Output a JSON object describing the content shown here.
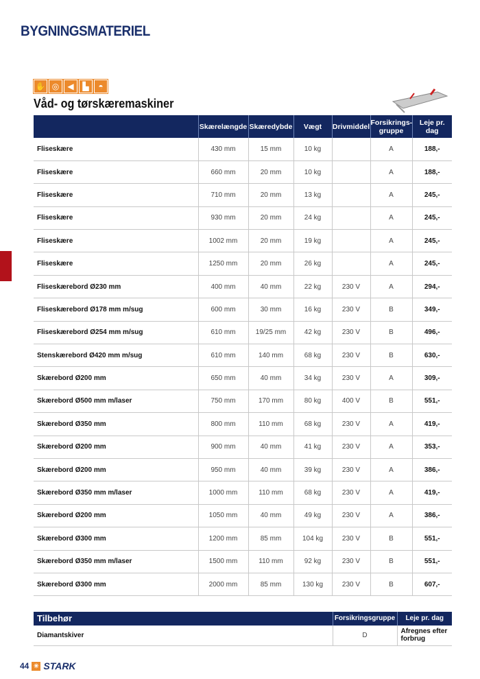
{
  "section_title": "BYGNINGSMATERIEL",
  "product_title": "Våd- og tørskæremaskiner",
  "safety_icons": [
    "gloves-icon",
    "ear-protection-icon",
    "dust-mask-icon",
    "safety-boots-icon",
    "helmet-icon"
  ],
  "columns": [
    "",
    "Skærelængde",
    "Skæredybde",
    "Vægt",
    "Drivmiddel",
    "Forsikrings-gruppe",
    "Leje pr. dag"
  ],
  "rows": [
    [
      "Fliseskære",
      "430 mm",
      "15 mm",
      "10 kg",
      "",
      "A",
      "188,-"
    ],
    [
      "Fliseskære",
      "660 mm",
      "20 mm",
      "10 kg",
      "",
      "A",
      "188,-"
    ],
    [
      "Fliseskære",
      "710 mm",
      "20 mm",
      "13 kg",
      "",
      "A",
      "245,-"
    ],
    [
      "Fliseskære",
      "930 mm",
      "20 mm",
      "24 kg",
      "",
      "A",
      "245,-"
    ],
    [
      "Fliseskære",
      "1002 mm",
      "20 mm",
      "19 kg",
      "",
      "A",
      "245,-"
    ],
    [
      "Fliseskære",
      "1250 mm",
      "20 mm",
      "26 kg",
      "",
      "A",
      "245,-"
    ],
    [
      "Fliseskærebord Ø230 mm",
      "400 mm",
      "40 mm",
      "22 kg",
      "230 V",
      "A",
      "294,-"
    ],
    [
      "Fliseskærebord Ø178 mm m/sug",
      "600 mm",
      "30 mm",
      "16 kg",
      "230 V",
      "B",
      "349,-"
    ],
    [
      "Fliseskærebord Ø254 mm m/sug",
      "610 mm",
      "19/25 mm",
      "42 kg",
      "230 V",
      "B",
      "496,-"
    ],
    [
      "Stenskærebord Ø420 mm m/sug",
      "610 mm",
      "140 mm",
      "68 kg",
      "230 V",
      "B",
      "630,-"
    ],
    [
      "Skærebord Ø200 mm",
      "650 mm",
      "40 mm",
      "34 kg",
      "230 V",
      "A",
      "309,-"
    ],
    [
      "Skærebord Ø500 mm m/laser",
      "750 mm",
      "170 mm",
      "80 kg",
      "400 V",
      "B",
      "551,-"
    ],
    [
      "Skærebord Ø350 mm",
      "800 mm",
      "110 mm",
      "68 kg",
      "230 V",
      "A",
      "419,-"
    ],
    [
      "Skærebord Ø200 mm",
      "900 mm",
      "40 mm",
      "41 kg",
      "230 V",
      "A",
      "353,-"
    ],
    [
      "Skærebord Ø200 mm",
      "950 mm",
      "40 mm",
      "39 kg",
      "230 V",
      "A",
      "386,-"
    ],
    [
      "Skærebord Ø350 mm m/laser",
      "1000 mm",
      "110 mm",
      "68 kg",
      "230 V",
      "A",
      "419,-"
    ],
    [
      "Skærebord Ø200 mm",
      "1050 mm",
      "40 mm",
      "49 kg",
      "230 V",
      "A",
      "386,-"
    ],
    [
      "Skærebord Ø300 mm",
      "1200 mm",
      "85 mm",
      "104 kg",
      "230 V",
      "B",
      "551,-"
    ],
    [
      "Skærebord Ø350 mm m/laser",
      "1500 mm",
      "110 mm",
      "92 kg",
      "230 V",
      "B",
      "551,-"
    ],
    [
      "Skærebord Ø300 mm",
      "2000 mm",
      "85 mm",
      "130 kg",
      "230 V",
      "B",
      "607,-"
    ]
  ],
  "accessories": {
    "columns": [
      "Tilbehør",
      "Forsikringsgruppe",
      "Leje pr. dag"
    ],
    "rows": [
      [
        "Diamantskiver",
        "D",
        "Afregnes efter forbrug"
      ]
    ]
  },
  "footer": {
    "page_number": "44",
    "brand": "STARK"
  }
}
